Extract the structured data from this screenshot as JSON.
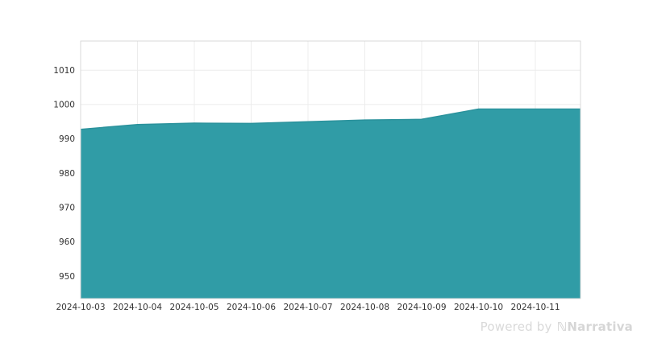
{
  "footer": {
    "powered_by": "Powered by",
    "logo_icon": "ℕ",
    "brand": "Narrativa"
  },
  "colors": {
    "area_fill": "#309ca6",
    "area_line": "#2b929c",
    "gridline": "#ececec",
    "plot_border": "#d9d9d9",
    "tick_text": "#333333",
    "footer_text": "#d9d9d9"
  },
  "chart_data": {
    "type": "area",
    "title": "",
    "xlabel": "",
    "ylabel": "",
    "x": [
      "2024-10-03",
      "2024-10-04",
      "2024-10-05",
      "2024-10-06",
      "2024-10-07",
      "2024-10-08",
      "2024-10-09",
      "2024-10-10",
      "2024-10-11"
    ],
    "values": [
      992.8,
      994.2,
      994.6,
      994.5,
      995.0,
      995.5,
      995.7,
      998.7,
      998.7
    ],
    "yticks": [
      950,
      960,
      970,
      980,
      990,
      1000,
      1010
    ],
    "ylim": [
      943.5,
      1018.5
    ],
    "grid": true,
    "legend": false,
    "area_extends_to_right_edge": true
  }
}
